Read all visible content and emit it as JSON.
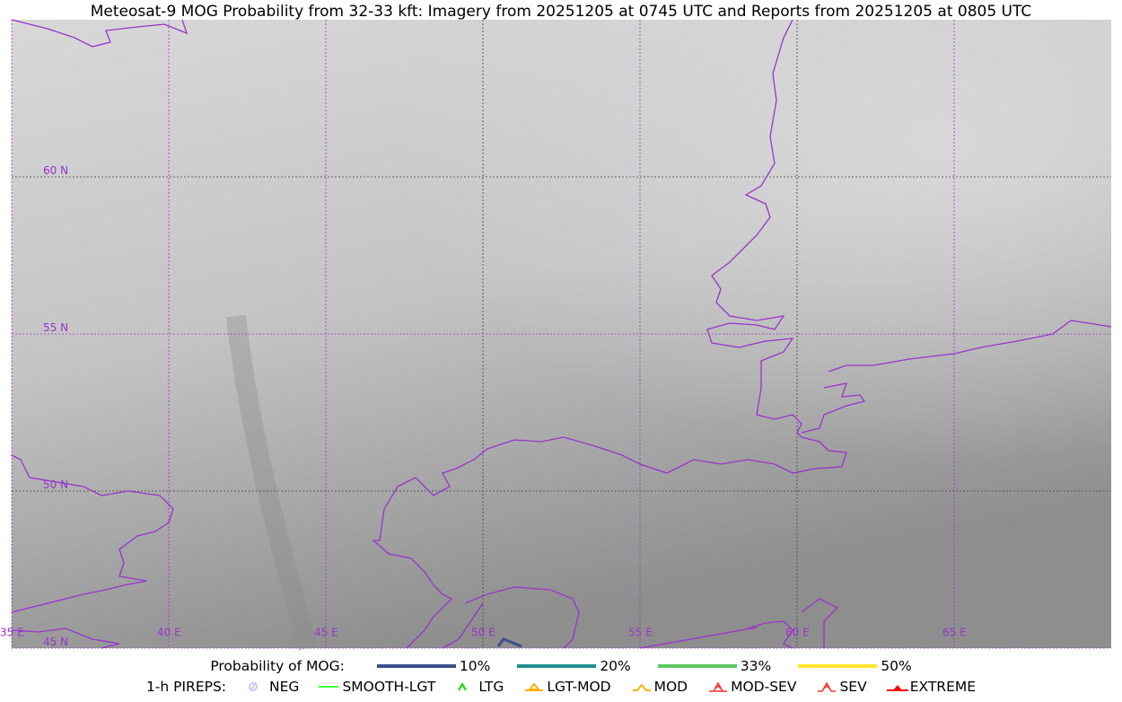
{
  "title": "Meteosat-9 MOG Probability from 32-33 kft: Imagery from 20251205 at 0745 UTC and Reports from 20251205 at 0805 UTC",
  "map": {
    "lon_labels": [
      "35 E",
      "40 E",
      "45 E",
      "50 E",
      "55 E",
      "60 E",
      "65 E"
    ],
    "lat_labels": [
      "60 N",
      "55 N",
      "50 N",
      "45 N"
    ],
    "lon_range": [
      35,
      70
    ],
    "lat_range": [
      45,
      65
    ],
    "grid_color": "#9933cc",
    "coastline_color": "#9933cc"
  },
  "legend": {
    "probability_label": "Probability of MOG:",
    "probability_items": [
      {
        "label": "10%",
        "color": "#3b4f8c"
      },
      {
        "label": "20%",
        "color": "#21908d"
      },
      {
        "label": "33%",
        "color": "#5cc863"
      },
      {
        "label": "50%",
        "color": "#fde725"
      }
    ],
    "pireps_label": "1-h PIREPS:",
    "pirep_items": [
      {
        "label": "NEG",
        "icon": "neg-circle-slash-icon",
        "color": "#c8c8ff"
      },
      {
        "label": "SMOOTH-LGT",
        "icon": "line-icon",
        "color": "#00ff00"
      },
      {
        "label": "LTG",
        "icon": "caret-icon",
        "color": "#00dd00"
      },
      {
        "label": "LGT-MOD",
        "icon": "triangle-bar-icon",
        "color": "#ffb000"
      },
      {
        "label": "MOD",
        "icon": "caret-bar-icon",
        "color": "#ffb000"
      },
      {
        "label": "MOD-SEV",
        "icon": "double-caret-bar-icon",
        "color": "#ff3030"
      },
      {
        "label": "SEV",
        "icon": "double-caret-icon",
        "color": "#ff3030"
      },
      {
        "label": "EXTREME",
        "icon": "filled-triangle-icon",
        "color": "#ff0000"
      }
    ]
  }
}
